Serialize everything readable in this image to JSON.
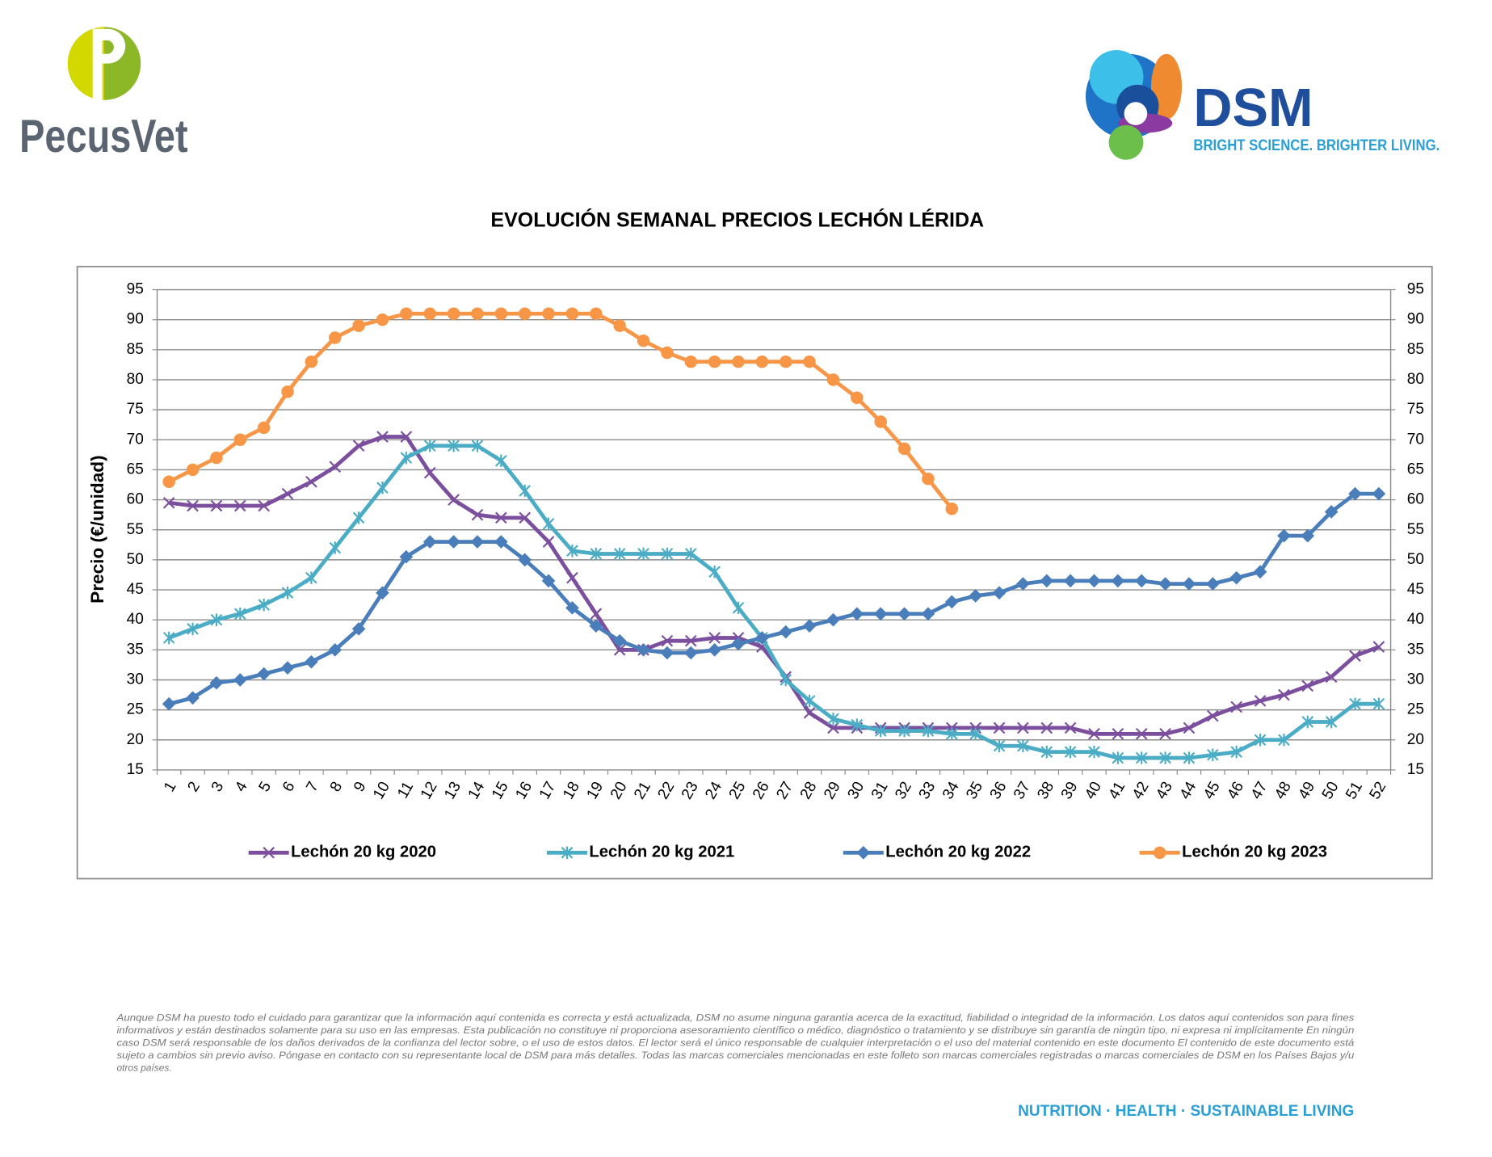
{
  "header": {
    "left_logo": "PecusVet",
    "right_logo": "DSM",
    "tagline": "BRIGHT SCIENCE. BRIGHTER LIVING."
  },
  "chart_data": {
    "type": "line",
    "title": "EVOLUCIÓN SEMANAL PRECIOS LECHÓN LÉRIDA",
    "ylabel": "Precio (€/unidad)",
    "categories": [
      "1",
      "2",
      "3",
      "4",
      "5",
      "6",
      "7",
      "8",
      "9",
      "10",
      "11",
      "12",
      "13",
      "14",
      "15",
      "16",
      "17",
      "18",
      "19",
      "20",
      "21",
      "22",
      "23",
      "24",
      "25",
      "26",
      "27",
      "28",
      "29",
      "30",
      "31",
      "32",
      "33",
      "34",
      "35",
      "36",
      "37",
      "38",
      "39",
      "40",
      "41",
      "42",
      "43",
      "44",
      "45",
      "46",
      "47",
      "48",
      "49",
      "50",
      "51",
      "52"
    ],
    "series": [
      {
        "name": "Lechón 20 kg 2020",
        "color": "#7b4f9e",
        "marker": "x",
        "values": [
          59.5,
          59,
          59,
          59,
          59,
          61,
          63,
          65.5,
          69,
          70.5,
          70.5,
          64.5,
          60,
          57.5,
          57,
          57,
          53,
          47,
          41,
          35,
          35,
          36.5,
          36.5,
          37,
          37,
          35.5,
          30.5,
          24.5,
          22,
          22,
          22,
          22,
          22,
          22,
          22,
          22,
          22,
          22,
          22,
          21,
          21,
          21,
          21,
          22,
          24,
          25.5,
          26.5,
          27.5,
          29,
          30.5,
          34,
          35.5
        ]
      },
      {
        "name": "Lechón 20 kg 2021",
        "color": "#4bacc6",
        "marker": "star",
        "values": [
          37,
          38.5,
          40,
          41,
          42.5,
          44.5,
          47,
          52,
          57,
          62,
          67,
          69,
          69,
          69,
          66.5,
          61.5,
          56,
          51.5,
          51,
          51,
          51,
          51,
          51,
          48,
          42,
          37,
          30,
          26.5,
          23.5,
          22.5,
          21.5,
          21.5,
          21.5,
          21,
          21,
          19,
          19,
          18,
          18,
          18,
          17,
          17,
          17,
          17,
          17.5,
          18,
          20,
          20,
          23,
          23,
          26,
          26
        ]
      },
      {
        "name": "Lechón 20 kg 2022",
        "color": "#4a7ebb",
        "marker": "diamond",
        "values": [
          26,
          27,
          29.5,
          30,
          31,
          32,
          33,
          35,
          38.5,
          44.5,
          50.5,
          53,
          53,
          53,
          53,
          50,
          46.5,
          42,
          39,
          36.5,
          35,
          34.5,
          34.5,
          35,
          36,
          37,
          38,
          39,
          40,
          41,
          41,
          41,
          41,
          43,
          44,
          44.5,
          46,
          46.5,
          46.5,
          46.5,
          46.5,
          46.5,
          46,
          46,
          46,
          47,
          48,
          54,
          54,
          58,
          61,
          61
        ]
      },
      {
        "name": "Lechón 20 kg 2023",
        "color": "#f79646",
        "marker": "circle",
        "values": [
          63,
          65,
          67,
          70,
          72,
          78,
          83,
          87,
          89,
          90,
          91,
          91,
          91,
          91,
          91,
          91,
          91,
          91,
          91,
          89,
          86.5,
          84.5,
          83,
          83,
          83,
          83,
          83,
          83,
          80,
          77,
          73,
          68.5,
          63.5,
          58.5,
          null,
          null,
          null,
          null,
          null,
          null,
          null,
          null,
          null,
          null,
          null,
          null,
          null,
          null,
          null,
          null,
          null,
          null
        ]
      }
    ],
    "ylim": [
      15,
      95
    ],
    "yticks": [
      15,
      20,
      25,
      30,
      35,
      40,
      45,
      50,
      55,
      60,
      65,
      70,
      75,
      80,
      85,
      90,
      95
    ],
    "y2lim": [
      15,
      95
    ],
    "y2ticks": [
      15,
      20,
      25,
      30,
      35,
      40,
      45,
      50,
      55,
      60,
      65,
      70,
      75,
      80,
      85,
      90,
      95
    ],
    "grid": true,
    "legend": "bottom"
  },
  "disclaimer": [
    "Aunque DSM ha puesto todo el cuidado para garantizar que la información aquí contenida es correcta y está actualizada, DSM no asume ninguna garantía acerca de la exactitud, fiabilidad o integridad de la información. Los datos aquí contenidos son para fines",
    "informativos y están destinados solamente para su uso en las empresas. Esta publicación no constituye ni proporciona asesoramiento científico o médico, diagnóstico o tratamiento y se distribuye sin garantía de ningún tipo, ni expresa ni implícitamente En ningún",
    "caso DSM será responsable de los daños derivados de la confianza del lector sobre, o el uso de estos datos. El lector será el único responsable de cualquier interpretación o el uso del material contenido en este documento El contenido de este documento está",
    "sujeto a cambios sin previo aviso. Póngase en contacto con su representante local de DSM para más detalles. Todas las marcas comerciales mencionadas en este folleto son marcas comerciales registradas o marcas comerciales de DSM en los Países Bajos y/u",
    "otros países."
  ],
  "footer": "NUTRITION · HEALTH · SUSTAINABLE LIVING"
}
